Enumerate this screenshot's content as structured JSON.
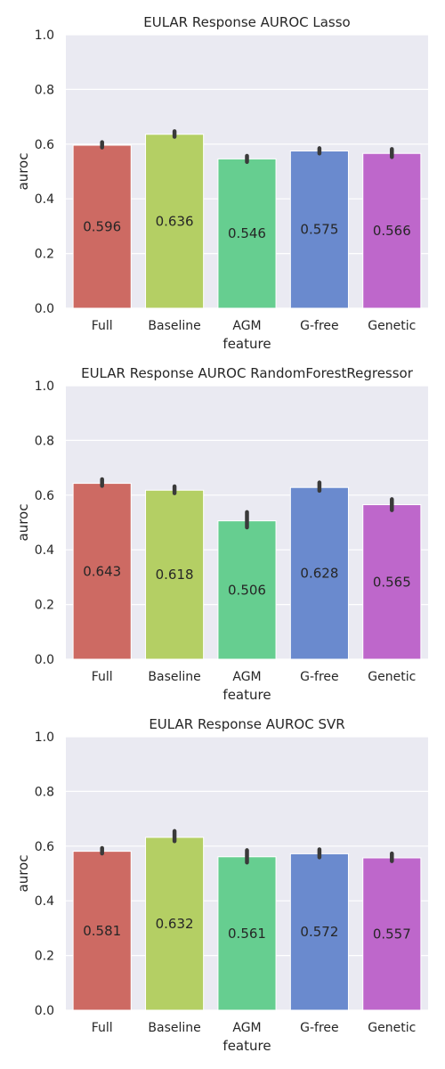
{
  "colors": {
    "plot_background": "#EAEAF2",
    "grid": "#FFFFFF",
    "text": "#262626",
    "error_bar": "#3A3A3A",
    "bars": [
      "#CD6A63",
      "#B4CF64",
      "#66CE90",
      "#6A8ACE",
      "#BE67CB"
    ]
  },
  "chart_data": [
    {
      "type": "bar",
      "title": "EULAR Response AUROC Lasso",
      "xlabel": "feature",
      "ylabel": "auroc",
      "ylim": [
        0,
        1
      ],
      "yticks": [
        "0.0",
        "0.2",
        "0.4",
        "0.6",
        "0.8",
        "1.0"
      ],
      "grid": true,
      "categories": [
        "Full",
        "Baseline",
        "AGM",
        "G-free",
        "Genetic"
      ],
      "values": [
        0.596,
        0.636,
        0.546,
        0.575,
        0.566
      ],
      "value_labels": [
        "0.596",
        "0.636",
        "0.546",
        "0.575",
        "0.566"
      ],
      "error_low": [
        0.588,
        0.627,
        0.535,
        0.566,
        0.553
      ],
      "error_high": [
        0.607,
        0.647,
        0.557,
        0.585,
        0.582
      ]
    },
    {
      "type": "bar",
      "title": "EULAR Response AUROC RandomForestRegressor",
      "xlabel": "feature",
      "ylabel": "auroc",
      "ylim": [
        0,
        1
      ],
      "yticks": [
        "0.0",
        "0.2",
        "0.4",
        "0.6",
        "0.8",
        "1.0"
      ],
      "grid": true,
      "categories": [
        "Full",
        "Baseline",
        "AGM",
        "G-free",
        "Genetic"
      ],
      "values": [
        0.643,
        0.618,
        0.506,
        0.628,
        0.565
      ],
      "value_labels": [
        "0.643",
        "0.618",
        "0.506",
        "0.628",
        "0.565"
      ],
      "error_low": [
        0.634,
        0.607,
        0.482,
        0.616,
        0.545
      ],
      "error_high": [
        0.658,
        0.632,
        0.538,
        0.646,
        0.585
      ]
    },
    {
      "type": "bar",
      "title": "EULAR Response AUROC SVR",
      "xlabel": "feature",
      "ylabel": "auroc",
      "ylim": [
        0,
        1
      ],
      "yticks": [
        "0.0",
        "0.2",
        "0.4",
        "0.6",
        "0.8",
        "1.0"
      ],
      "grid": true,
      "categories": [
        "Full",
        "Baseline",
        "AGM",
        "G-free",
        "Genetic"
      ],
      "values": [
        0.581,
        0.632,
        0.561,
        0.572,
        0.557
      ],
      "value_labels": [
        "0.581",
        "0.632",
        "0.561",
        "0.572",
        "0.557"
      ],
      "error_low": [
        0.573,
        0.618,
        0.54,
        0.559,
        0.545
      ],
      "error_high": [
        0.593,
        0.655,
        0.585,
        0.588,
        0.573
      ]
    }
  ]
}
